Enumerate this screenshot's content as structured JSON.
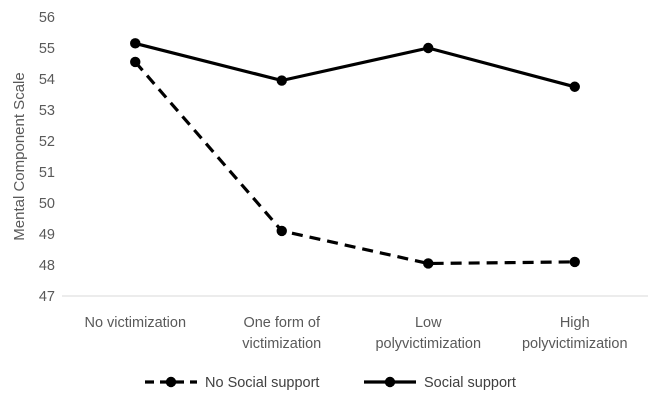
{
  "chart_data": {
    "type": "line",
    "title": "",
    "xlabel": "",
    "ylabel": "Mental Component Scale",
    "ylim": [
      47,
      56
    ],
    "yticks": [
      47,
      48,
      49,
      50,
      51,
      52,
      53,
      54,
      55,
      56
    ],
    "grid": false,
    "legend": "bottom",
    "categories": [
      [
        "No victimization"
      ],
      [
        "One form of",
        "victimization"
      ],
      [
        "Low",
        "polyvictimization"
      ],
      [
        "High",
        "polyvictimization"
      ]
    ],
    "series": [
      {
        "name": "No Social support",
        "style": "dashed",
        "color": "#000000",
        "values": [
          54.55,
          49.1,
          48.05,
          48.1
        ]
      },
      {
        "name": "Social support",
        "style": "solid",
        "color": "#000000",
        "values": [
          55.15,
          53.95,
          55.0,
          53.75
        ]
      }
    ]
  }
}
